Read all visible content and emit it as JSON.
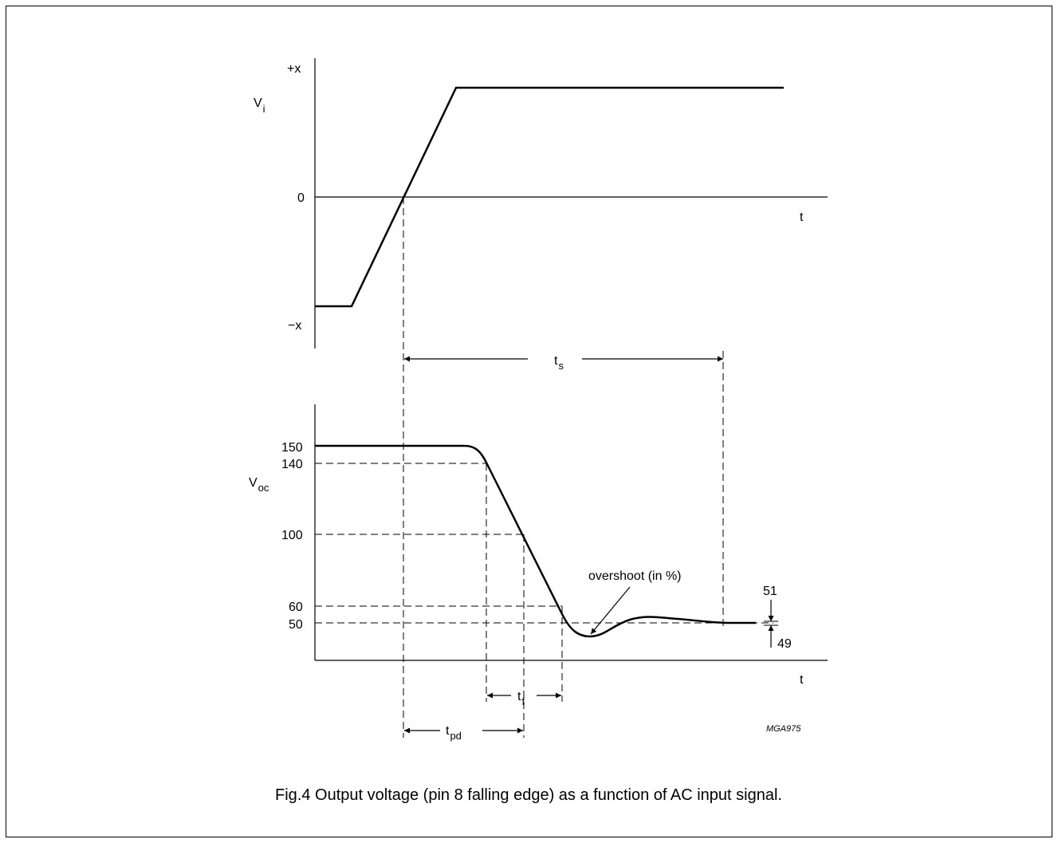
{
  "figure": {
    "caption": "Fig.4  Output voltage (pin 8 falling edge) as a function of AC input signal.",
    "code": "MGA975"
  },
  "top_plot": {
    "y_label_main": "V",
    "y_label_sub": "i",
    "ticks": [
      "+x",
      "0",
      "−x"
    ],
    "x_label": "t"
  },
  "bottom_plot": {
    "y_label_main": "V",
    "y_label_sub": "oc",
    "ticks": [
      "150",
      "140",
      "100",
      "60",
      "50"
    ],
    "x_label": "t",
    "annotation": "overshoot (in %)",
    "band_upper": "51",
    "band_lower": "49"
  },
  "timings": {
    "ts_main": "t",
    "ts_sub": "s",
    "tf_main": "t",
    "tf_sub": "f",
    "tpd_main": "t",
    "tpd_sub": "pd"
  }
}
